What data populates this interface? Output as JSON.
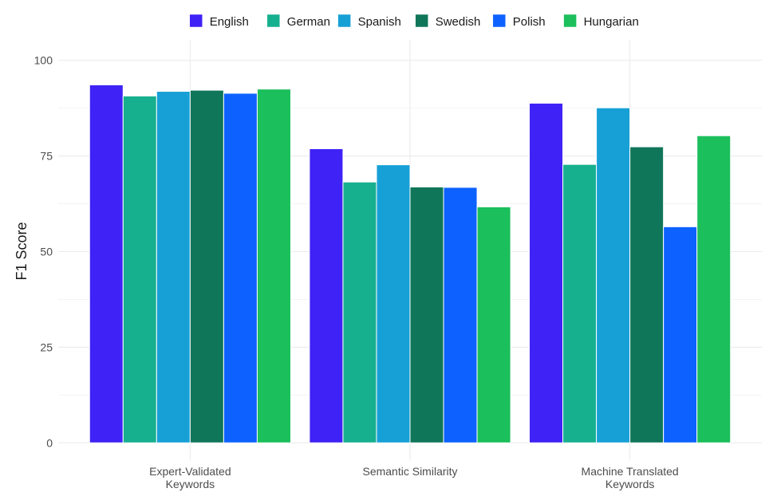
{
  "chart_data": {
    "type": "bar",
    "title": "",
    "xlabel": "",
    "ylabel": "F1 Score",
    "ylim": [
      0,
      100
    ],
    "yticks": [
      0,
      25,
      50,
      75,
      100
    ],
    "y_minor_ticks": [
      12.5,
      37.5,
      62.5,
      87.5
    ],
    "grid": true,
    "legend_position": "top",
    "categories": [
      [
        "Expert-Validated",
        "Keywords"
      ],
      [
        "Semantic Similarity"
      ],
      [
        "Machine Translated",
        "Keywords"
      ]
    ],
    "series": [
      {
        "name": "English",
        "color": "#3f22f5",
        "values": [
          93.6,
          76.9,
          88.8
        ]
      },
      {
        "name": "German",
        "color": "#17b08f",
        "values": [
          90.7,
          68.2,
          72.8
        ]
      },
      {
        "name": "Spanish",
        "color": "#17a0d6",
        "values": [
          91.9,
          72.7,
          87.6
        ]
      },
      {
        "name": "Swedish",
        "color": "#10765a",
        "values": [
          92.2,
          66.9,
          77.4
        ]
      },
      {
        "name": "Polish",
        "color": "#0d62ff",
        "values": [
          91.4,
          66.8,
          56.5
        ]
      },
      {
        "name": "Hungarian",
        "color": "#1bbf5b",
        "values": [
          92.5,
          61.7,
          80.3
        ]
      }
    ]
  }
}
